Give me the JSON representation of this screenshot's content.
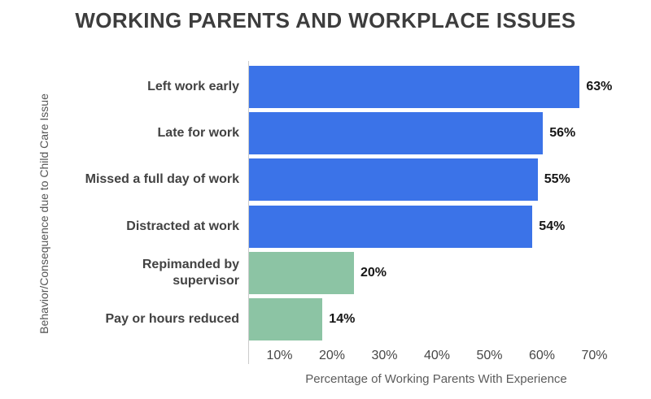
{
  "chart_data": {
    "type": "bar",
    "orientation": "horizontal",
    "title": "WORKING PARENTS AND WORKPLACE ISSUES",
    "xlabel": "Percentage of Working Parents With Experience",
    "ylabel": "Behavior/Consequence due to Child Care Issue",
    "categories": [
      "Left work early",
      "Late for work",
      "Missed a full day of work",
      "Distracted at work",
      "Repimanded by\nsupervisor",
      "Pay or hours reduced"
    ],
    "values": [
      63,
      56,
      55,
      54,
      20,
      14
    ],
    "value_labels": [
      "63%",
      "56%",
      "55%",
      "54%",
      "20%",
      "14%"
    ],
    "bar_colors": [
      "#3b73e8",
      "#3b73e8",
      "#3b73e8",
      "#3b73e8",
      "#8cc4a4",
      "#8cc4a4"
    ],
    "x_tick_values": [
      10,
      20,
      30,
      40,
      50,
      60,
      70
    ],
    "x_tick_labels": [
      "10%",
      "20%",
      "30%",
      "40%",
      "50%",
      "60%",
      "70%"
    ],
    "xlim": [
      0,
      70
    ],
    "grid": false,
    "legend": "none",
    "colors": {
      "series_blue": "#3b73e8",
      "series_green": "#8cc4a4",
      "title_text": "#3d3d3d",
      "category_text": "#424242",
      "value_text": "#161616",
      "tick_text": "#474747",
      "axis_title_text": "#5c5c5c",
      "axis_line": "#cccccc",
      "background": "#ffffff"
    }
  }
}
